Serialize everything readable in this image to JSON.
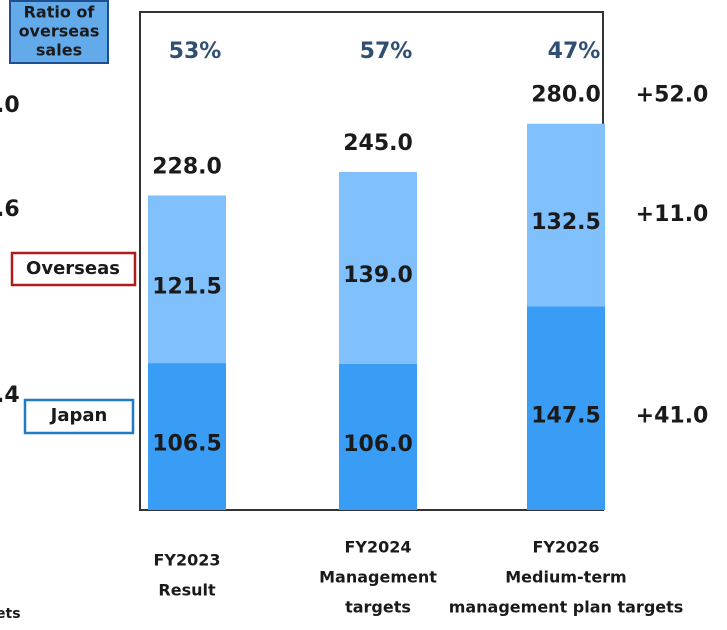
{
  "chart_data": {
    "type": "stacked_bar",
    "ratio_title": [
      "Ratio of",
      "overseas",
      "sales"
    ],
    "categories": [
      [
        "FY2023",
        "Result"
      ],
      [
        "FY2024",
        "Management",
        "targets"
      ],
      [
        "FY2026",
        "Medium-term",
        "management plan targets"
      ]
    ],
    "series": [
      {
        "name": "Japan",
        "color": "#3a9df5",
        "values": [
          106.5,
          106,
          147.5
        ],
        "value_labels": [
          "106.5",
          "106.0",
          "147.5"
        ]
      },
      {
        "name": "Overseas",
        "color": "#80c0fd",
        "values": [
          121.5,
          139,
          132.5
        ],
        "value_labels": [
          "121.5",
          "139.0",
          "132.5"
        ]
      }
    ],
    "totals": [
      228,
      245,
      280
    ],
    "total_labels": [
      "228.0",
      "245.0",
      "280.0"
    ],
    "ratios": [
      53,
      57,
      47
    ],
    "ratio_labels": [
      "53%",
      "57%",
      "47%"
    ],
    "changes": [
      {
        "value": 52,
        "label": "+52.0"
      },
      {
        "value": 11,
        "label": "+11.0"
      },
      {
        "value": 41,
        "label": "+41.0"
      }
    ],
    "cropped_labels": [
      ".0",
      ".6",
      ".4",
      "ets"
    ],
    "ylim": [
      0,
      361
    ]
  }
}
